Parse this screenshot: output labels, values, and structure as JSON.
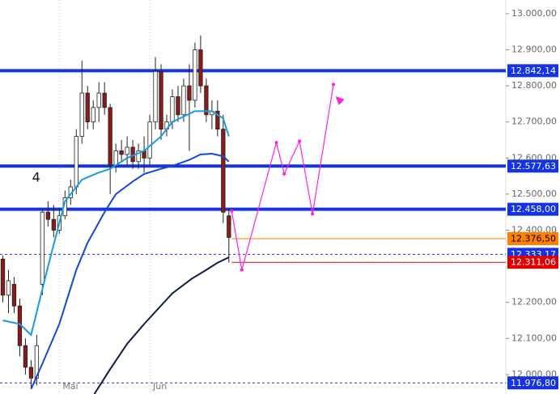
{
  "chart_data": {
    "type": "candlestick",
    "xlim": [
      -0.5,
      89
    ],
    "ylim": [
      11946,
      13038
    ],
    "xticks": [
      {
        "value": 10,
        "label": "Mai"
      },
      {
        "value": 26,
        "label": "Jun"
      }
    ],
    "yticks": [
      {
        "value": 12000,
        "label": "12.000,00"
      },
      {
        "value": 12100,
        "label": "12.100,00"
      },
      {
        "value": 12200,
        "label": "12.200,00"
      },
      {
        "value": 12400,
        "label": "12.400,00"
      },
      {
        "value": 12500,
        "label": "12.500,00"
      },
      {
        "value": 12600,
        "label": "12.600,00"
      },
      {
        "value": 12700,
        "label": "12.700,00"
      },
      {
        "value": 12800,
        "label": "12.800,00"
      },
      {
        "value": 12900,
        "label": "12.900,00"
      },
      {
        "value": 13000,
        "label": "13.000,00"
      }
    ],
    "up_color": "#ffffff",
    "down_color": "#8b1a1a",
    "open": [
      12320,
      12220,
      12250,
      12190,
      12080,
      12020,
      11990,
      12250,
      12450,
      12430,
      12400,
      12440,
      12490,
      12520,
      12660,
      12780,
      12700,
      12740,
      12780,
      12740,
      12580,
      12620,
      12610,
      12630,
      12590,
      12620,
      12600,
      12700,
      12840,
      12680,
      12700,
      12770,
      12720,
      12800,
      12760,
      12900,
      12800,
      12720,
      12730,
      12680,
      12440
    ],
    "high": [
      12330,
      12290,
      12270,
      12210,
      12100,
      12040,
      12110,
      12460,
      12480,
      12470,
      12460,
      12510,
      12540,
      12680,
      12870,
      12800,
      12760,
      12810,
      12810,
      12750,
      12640,
      12650,
      12660,
      12650,
      12640,
      12660,
      12720,
      12880,
      12860,
      12720,
      12790,
      12800,
      12820,
      12860,
      12920,
      12940,
      12820,
      12760,
      12760,
      12720,
      12460
    ],
    "low": [
      12200,
      12170,
      12170,
      12050,
      12000,
      11960,
      11970,
      12220,
      12410,
      12380,
      12390,
      12430,
      12470,
      12500,
      12640,
      12680,
      12680,
      12700,
      12720,
      12500,
      12560,
      12590,
      12580,
      12570,
      12570,
      12560,
      12580,
      12680,
      12650,
      12660,
      12680,
      12700,
      12700,
      12620,
      12740,
      12780,
      12700,
      12680,
      12660,
      12420,
      12310
    ],
    "close": [
      12220,
      12260,
      12190,
      12080,
      12020,
      11990,
      12080,
      12450,
      12430,
      12400,
      12440,
      12490,
      12520,
      12660,
      12780,
      12700,
      12740,
      12780,
      12740,
      12580,
      12620,
      12610,
      12630,
      12590,
      12620,
      12600,
      12700,
      12840,
      12680,
      12700,
      12770,
      12720,
      12800,
      12760,
      12900,
      12800,
      12720,
      12730,
      12680,
      12450,
      12380
    ],
    "indicators": [
      {
        "color": "#1a9ae0",
        "x": [
          0,
          3,
          5,
          8,
          11,
          14,
          17,
          19,
          22,
          25,
          28,
          30,
          32,
          34,
          37,
          39,
          40
        ],
        "values": [
          12150,
          12140,
          12110,
          12300,
          12480,
          12540,
          12560,
          12570,
          12600,
          12620,
          12660,
          12700,
          12715,
          12730,
          12730,
          12710,
          12660
        ]
      },
      {
        "color": "#1446d8",
        "x": [
          5,
          7,
          10,
          13,
          15,
          18,
          20,
          23,
          25,
          28,
          30,
          33,
          35,
          37,
          39,
          40
        ],
        "values": [
          11960,
          12030,
          12140,
          12290,
          12365,
          12450,
          12500,
          12535,
          12556,
          12570,
          12578,
          12595,
          12610,
          12612,
          12605,
          12590
        ]
      },
      {
        "color": "#0a1a4a",
        "x": [
          16.2,
          19,
          22,
          25,
          27.7,
          30,
          33.4,
          36,
          38,
          40
        ],
        "values": [
          11946,
          12015,
          12085,
          12140,
          12186,
          12225,
          12265,
          12290,
          12310,
          12325
        ]
      }
    ],
    "projection": {
      "color": "#ff22dd",
      "x": [
        40.5,
        42.3,
        48.4,
        49.8,
        52.5,
        54.8,
        58.5
      ],
      "values": [
        12453,
        12290,
        12643,
        12556,
        12647,
        12445,
        12804
      ],
      "arrow": {
        "x": 59.6,
        "value": 12758
      }
    },
    "levels": {
      "values": [
        12842.14,
        12577.63,
        12458.0,
        12376.5,
        12333.17,
        12311.06,
        11976.8
      ],
      "value_labels": [
        "12.842,14",
        "12.577,63",
        "12.458,00",
        "12.376,50",
        "12.333,17",
        "12.311,06",
        "11.976,80"
      ],
      "colors": [
        "#1432e6",
        "#1432e6",
        "#1432e6",
        "#ff7f00",
        "#1432e6",
        "#e00000",
        "#1432e6"
      ],
      "styles": [
        "thick",
        "thick",
        "thick",
        "thin",
        "dashed",
        "thin",
        "dashed"
      ]
    },
    "annotation": {
      "text": "4",
      "x": 5.9,
      "y": 12545
    }
  }
}
